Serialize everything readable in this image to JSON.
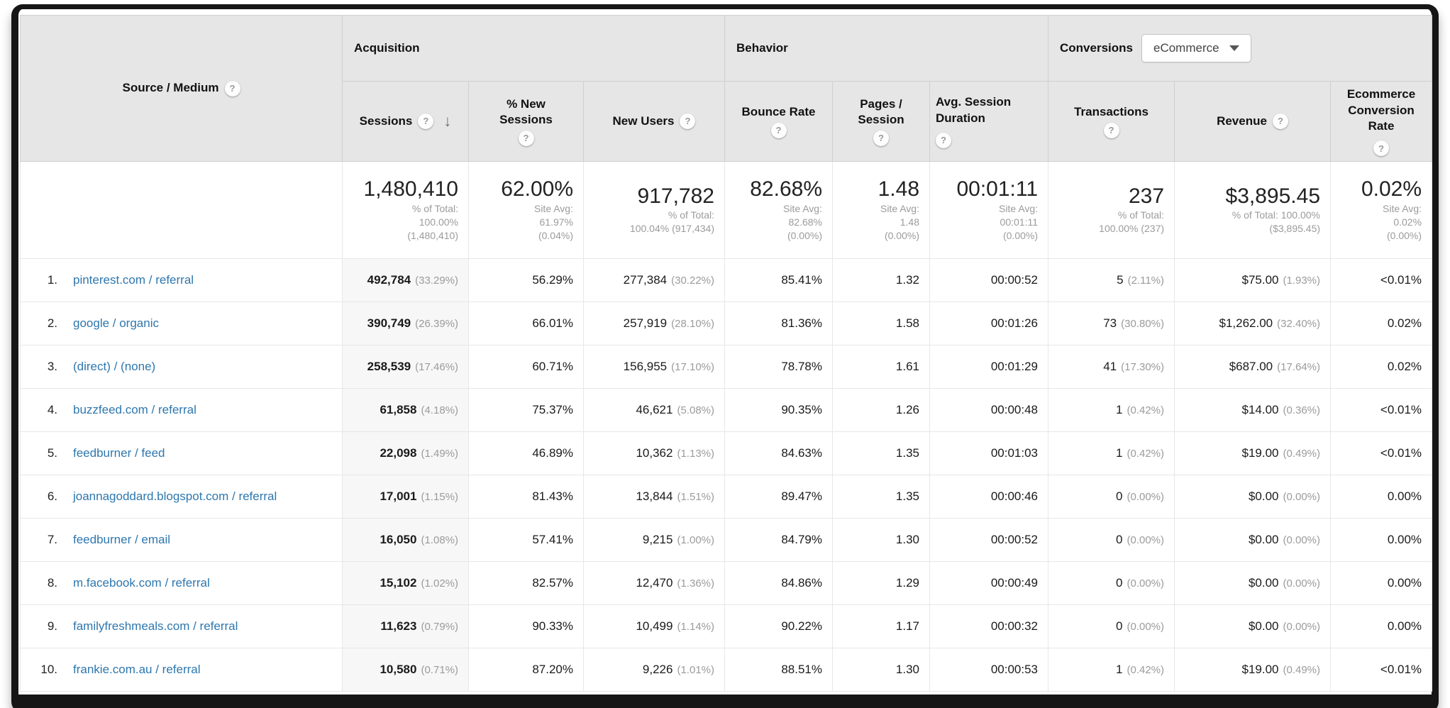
{
  "colors": {
    "header_bg": "#e6e6e6",
    "link_blue": "#2e77ae",
    "muted_gray": "#9b9b9b",
    "sorted_col_bg": "#f7f7f7",
    "frame_dark": "#161616"
  },
  "table": {
    "source_medium_header": "Source / Medium",
    "groups": {
      "acquisition": "Acquisition",
      "behavior": "Behavior",
      "conversions": "Conversions"
    },
    "conversions_selector": "eCommerce",
    "columns": {
      "sessions": "Sessions",
      "pct_new_sessions": "% New Sessions",
      "new_users": "New Users",
      "bounce_rate": "Bounce Rate",
      "pages_session": "Pages / Session",
      "avg_session_duration": "Avg. Session Duration",
      "transactions": "Transactions",
      "revenue": "Revenue",
      "ecommerce_conversion_rate": "Ecommerce Conversion Rate"
    },
    "summary": {
      "sessions": {
        "value": "1,480,410",
        "sub": [
          "% of Total:",
          "100.00%",
          "(1,480,410)"
        ]
      },
      "new_sessions": {
        "value": "62.00%",
        "sub": [
          "Site Avg:",
          "61.97%",
          "(0.04%)"
        ]
      },
      "new_users": {
        "value": "917,782",
        "sub": [
          "% of Total:",
          "100.04% (917,434)"
        ]
      },
      "bounce": {
        "value": "82.68%",
        "sub": [
          "Site Avg:",
          "82.68%",
          "(0.00%)"
        ]
      },
      "pages": {
        "value": "1.48",
        "sub": [
          "Site Avg:",
          "1.48",
          "(0.00%)"
        ]
      },
      "duration": {
        "value": "00:01:11",
        "sub": [
          "Site Avg:",
          "00:01:11",
          "(0.00%)"
        ]
      },
      "transactions": {
        "value": "237",
        "sub": [
          "% of Total:",
          "100.00% (237)"
        ]
      },
      "revenue": {
        "value": "$3,895.45",
        "sub": [
          "% of Total: 100.00%",
          "($3,895.45)"
        ]
      },
      "conv_rate": {
        "value": "0.02%",
        "sub": [
          "Site Avg:",
          "0.02%",
          "(0.00%)"
        ]
      }
    },
    "rows": [
      {
        "rank": "1.",
        "source": "pinterest.com / referral",
        "sessions": "492,784",
        "sessions_pct": "(33.29%)",
        "new_sessions": "56.29%",
        "new_users": "277,384",
        "new_users_pct": "(30.22%)",
        "bounce": "85.41%",
        "pages": "1.32",
        "duration": "00:00:52",
        "transactions": "5",
        "transactions_pct": "(2.11%)",
        "revenue": "$75.00",
        "revenue_pct": "(1.93%)",
        "conv_rate": "<0.01%"
      },
      {
        "rank": "2.",
        "source": "google / organic",
        "sessions": "390,749",
        "sessions_pct": "(26.39%)",
        "new_sessions": "66.01%",
        "new_users": "257,919",
        "new_users_pct": "(28.10%)",
        "bounce": "81.36%",
        "pages": "1.58",
        "duration": "00:01:26",
        "transactions": "73",
        "transactions_pct": "(30.80%)",
        "revenue": "$1,262.00",
        "revenue_pct": "(32.40%)",
        "conv_rate": "0.02%"
      },
      {
        "rank": "3.",
        "source": "(direct) / (none)",
        "sessions": "258,539",
        "sessions_pct": "(17.46%)",
        "new_sessions": "60.71%",
        "new_users": "156,955",
        "new_users_pct": "(17.10%)",
        "bounce": "78.78%",
        "pages": "1.61",
        "duration": "00:01:29",
        "transactions": "41",
        "transactions_pct": "(17.30%)",
        "revenue": "$687.00",
        "revenue_pct": "(17.64%)",
        "conv_rate": "0.02%"
      },
      {
        "rank": "4.",
        "source": "buzzfeed.com / referral",
        "sessions": "61,858",
        "sessions_pct": "(4.18%)",
        "new_sessions": "75.37%",
        "new_users": "46,621",
        "new_users_pct": "(5.08%)",
        "bounce": "90.35%",
        "pages": "1.26",
        "duration": "00:00:48",
        "transactions": "1",
        "transactions_pct": "(0.42%)",
        "revenue": "$14.00",
        "revenue_pct": "(0.36%)",
        "conv_rate": "<0.01%"
      },
      {
        "rank": "5.",
        "source": "feedburner / feed",
        "sessions": "22,098",
        "sessions_pct": "(1.49%)",
        "new_sessions": "46.89%",
        "new_users": "10,362",
        "new_users_pct": "(1.13%)",
        "bounce": "84.63%",
        "pages": "1.35",
        "duration": "00:01:03",
        "transactions": "1",
        "transactions_pct": "(0.42%)",
        "revenue": "$19.00",
        "revenue_pct": "(0.49%)",
        "conv_rate": "<0.01%"
      },
      {
        "rank": "6.",
        "source": "joannagoddard.blogspot.com / referral",
        "sessions": "17,001",
        "sessions_pct": "(1.15%)",
        "new_sessions": "81.43%",
        "new_users": "13,844",
        "new_users_pct": "(1.51%)",
        "bounce": "89.47%",
        "pages": "1.35",
        "duration": "00:00:46",
        "transactions": "0",
        "transactions_pct": "(0.00%)",
        "revenue": "$0.00",
        "revenue_pct": "(0.00%)",
        "conv_rate": "0.00%"
      },
      {
        "rank": "7.",
        "source": "feedburner / email",
        "sessions": "16,050",
        "sessions_pct": "(1.08%)",
        "new_sessions": "57.41%",
        "new_users": "9,215",
        "new_users_pct": "(1.00%)",
        "bounce": "84.79%",
        "pages": "1.30",
        "duration": "00:00:52",
        "transactions": "0",
        "transactions_pct": "(0.00%)",
        "revenue": "$0.00",
        "revenue_pct": "(0.00%)",
        "conv_rate": "0.00%"
      },
      {
        "rank": "8.",
        "source": "m.facebook.com / referral",
        "sessions": "15,102",
        "sessions_pct": "(1.02%)",
        "new_sessions": "82.57%",
        "new_users": "12,470",
        "new_users_pct": "(1.36%)",
        "bounce": "84.86%",
        "pages": "1.29",
        "duration": "00:00:49",
        "transactions": "0",
        "transactions_pct": "(0.00%)",
        "revenue": "$0.00",
        "revenue_pct": "(0.00%)",
        "conv_rate": "0.00%"
      },
      {
        "rank": "9.",
        "source": "familyfreshmeals.com / referral",
        "sessions": "11,623",
        "sessions_pct": "(0.79%)",
        "new_sessions": "90.33%",
        "new_users": "10,499",
        "new_users_pct": "(1.14%)",
        "bounce": "90.22%",
        "pages": "1.17",
        "duration": "00:00:32",
        "transactions": "0",
        "transactions_pct": "(0.00%)",
        "revenue": "$0.00",
        "revenue_pct": "(0.00%)",
        "conv_rate": "0.00%"
      },
      {
        "rank": "10.",
        "source": "frankie.com.au / referral",
        "sessions": "10,580",
        "sessions_pct": "(0.71%)",
        "new_sessions": "87.20%",
        "new_users": "9,226",
        "new_users_pct": "(1.01%)",
        "bounce": "88.51%",
        "pages": "1.30",
        "duration": "00:00:53",
        "transactions": "1",
        "transactions_pct": "(0.42%)",
        "revenue": "$19.00",
        "revenue_pct": "(0.49%)",
        "conv_rate": "<0.01%"
      }
    ]
  }
}
